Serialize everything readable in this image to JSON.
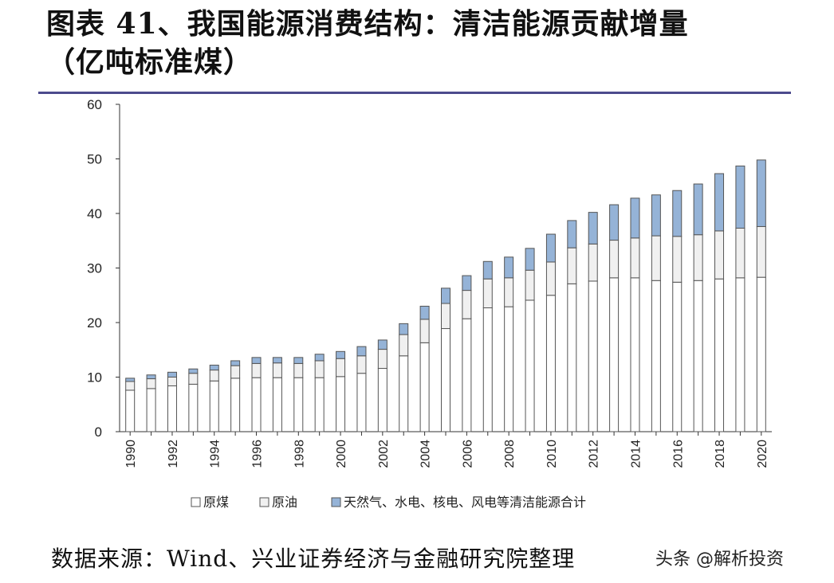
{
  "header": {
    "title_line1": "图表 41、我国能源消费结构：清洁能源贡献增量",
    "title_line2": "（亿吨标准煤）"
  },
  "footer": {
    "source": "数据来源：Wind、兴业证券经济与金融研究院整理",
    "watermark": "头条 @解析投资"
  },
  "colors": {
    "coal": "#ffffff",
    "oil": "#f0f0f0",
    "clean": "#95b3d7",
    "bar_stroke": "#555555",
    "rule": "#4c4a8c"
  },
  "chart_data": {
    "type": "bar",
    "stacked": true,
    "title": "",
    "xlabel": "",
    "ylabel": "",
    "ylim": [
      0,
      60
    ],
    "yticks": [
      0,
      10,
      20,
      30,
      40,
      50,
      60
    ],
    "grid": false,
    "legend_position": "bottom",
    "x_tick_labels": [
      "1990",
      "1992",
      "1994",
      "1996",
      "1998",
      "2000",
      "2002",
      "2004",
      "2006",
      "2008",
      "2010",
      "2012",
      "2014",
      "2016",
      "2018",
      "2020"
    ],
    "categories": [
      "1990",
      "1991",
      "1992",
      "1993",
      "1994",
      "1995",
      "1996",
      "1997",
      "1998",
      "1999",
      "2000",
      "2001",
      "2002",
      "2003",
      "2004",
      "2005",
      "2006",
      "2007",
      "2008",
      "2009",
      "2010",
      "2011",
      "2012",
      "2013",
      "2014",
      "2015",
      "2016",
      "2017",
      "2018",
      "2019",
      "2020"
    ],
    "series": [
      {
        "name": "原煤",
        "color": "#ffffff",
        "values": [
          7.6,
          7.9,
          8.4,
          8.7,
          9.3,
          9.8,
          9.9,
          9.9,
          9.9,
          9.9,
          10.1,
          10.7,
          11.6,
          13.9,
          16.3,
          18.9,
          20.7,
          22.7,
          22.9,
          24.1,
          25.0,
          27.1,
          27.6,
          28.2,
          28.2,
          27.7,
          27.4,
          27.7,
          28.0,
          28.2,
          28.3
        ]
      },
      {
        "name": "原油",
        "color": "#f0f0f0",
        "values": [
          1.6,
          1.8,
          1.6,
          2.0,
          2.0,
          2.3,
          2.6,
          2.7,
          2.6,
          3.1,
          3.3,
          3.2,
          3.5,
          3.9,
          4.3,
          4.6,
          5.2,
          5.3,
          5.3,
          5.5,
          6.1,
          6.6,
          6.8,
          6.9,
          7.3,
          8.2,
          8.4,
          8.4,
          8.8,
          9.1,
          9.3
        ]
      },
      {
        "name": "天然气、水电、核电、风电等清洁能源合计",
        "color": "#95b3d7",
        "values": [
          0.6,
          0.7,
          0.9,
          0.8,
          0.9,
          0.9,
          1.1,
          1.0,
          1.1,
          1.2,
          1.3,
          1.7,
          1.7,
          2.0,
          2.4,
          2.8,
          2.7,
          3.2,
          3.8,
          4.0,
          5.1,
          5.0,
          5.8,
          6.5,
          7.3,
          7.5,
          8.4,
          9.3,
          10.5,
          11.4,
          12.2
        ]
      }
    ]
  }
}
